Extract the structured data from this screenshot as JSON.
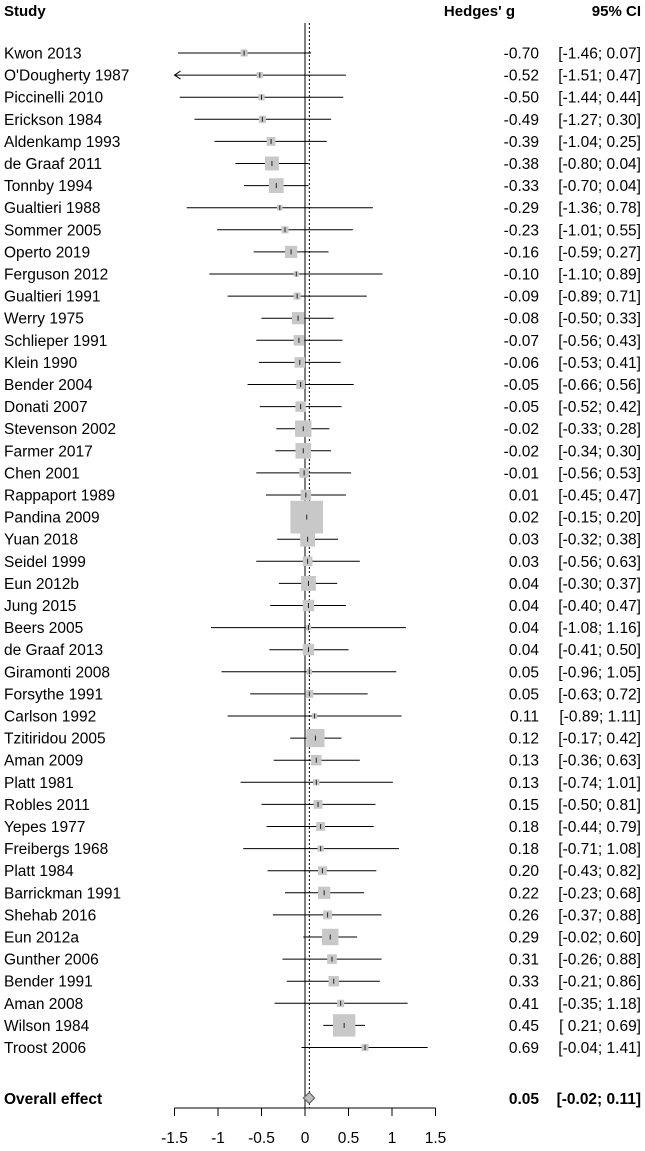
{
  "chart_data": {
    "type": "forest",
    "headers": {
      "study": "Study",
      "effect": "Hedges' g",
      "ci": "95% CI"
    },
    "xlim": [
      -1.5,
      1.5
    ],
    "x_ticks": [
      "-1.5",
      "-1",
      "-0.5",
      "0",
      "0.5",
      "1",
      "1.5"
    ],
    "null_value": 0,
    "overall": {
      "label": "Overall effect",
      "g": 0.05,
      "lower": -0.02,
      "upper": 0.11,
      "g_text": "0.05",
      "ci_text": "[-0.02; 0.11]"
    },
    "studies": [
      {
        "label": "Kwon 2013",
        "g": -0.7,
        "lower": -1.46,
        "upper": 0.07,
        "weight": 0.3,
        "g_text": "-0.70",
        "ci_text": "[-1.46; 0.07]"
      },
      {
        "label": "O'Dougherty 1987",
        "g": -0.52,
        "lower": -1.51,
        "upper": 0.47,
        "weight": 0.25,
        "g_text": "-0.52",
        "ci_text": "[-1.51; 0.47]"
      },
      {
        "label": "Piccinelli 2010",
        "g": -0.5,
        "lower": -1.44,
        "upper": 0.44,
        "weight": 0.25,
        "g_text": "-0.50",
        "ci_text": "[-1.44; 0.44]"
      },
      {
        "label": "Erickson 1984",
        "g": -0.49,
        "lower": -1.27,
        "upper": 0.3,
        "weight": 0.3,
        "g_text": "-0.49",
        "ci_text": "[-1.27; 0.30]"
      },
      {
        "label": "Aldenkamp 1993",
        "g": -0.39,
        "lower": -1.04,
        "upper": 0.25,
        "weight": 0.4,
        "g_text": "-0.39",
        "ci_text": "[-1.04; 0.25]"
      },
      {
        "label": "de Graaf 2011",
        "g": -0.38,
        "lower": -0.8,
        "upper": 0.04,
        "weight": 0.7,
        "g_text": "-0.38",
        "ci_text": "[-0.80; 0.04]"
      },
      {
        "label": "Tonnby 1994",
        "g": -0.33,
        "lower": -0.7,
        "upper": 0.04,
        "weight": 0.75,
        "g_text": "-0.33",
        "ci_text": "[-0.70; 0.04]"
      },
      {
        "label": "Gualtieri 1988",
        "g": -0.29,
        "lower": -1.36,
        "upper": 0.78,
        "weight": 0.2,
        "g_text": "-0.29",
        "ci_text": "[-1.36; 0.78]"
      },
      {
        "label": "Sommer 2005",
        "g": -0.23,
        "lower": -1.01,
        "upper": 0.55,
        "weight": 0.3,
        "g_text": "-0.23",
        "ci_text": "[-1.01; 0.55]"
      },
      {
        "label": "Operto 2019",
        "g": -0.16,
        "lower": -0.59,
        "upper": 0.27,
        "weight": 0.6,
        "g_text": "-0.16",
        "ci_text": "[-0.59; 0.27]"
      },
      {
        "label": "Ferguson 2012",
        "g": -0.1,
        "lower": -1.1,
        "upper": 0.89,
        "weight": 0.2,
        "g_text": "-0.10",
        "ci_text": "[-1.10; 0.89]"
      },
      {
        "label": "Gualtieri 1991",
        "g": -0.09,
        "lower": -0.89,
        "upper": 0.71,
        "weight": 0.3,
        "g_text": "-0.09",
        "ci_text": "[-0.89; 0.71]"
      },
      {
        "label": "Werry 1975",
        "g": -0.08,
        "lower": -0.5,
        "upper": 0.33,
        "weight": 0.6,
        "g_text": "-0.08",
        "ci_text": "[-0.50; 0.33]"
      },
      {
        "label": "Schlieper 1991",
        "g": -0.07,
        "lower": -0.56,
        "upper": 0.43,
        "weight": 0.5,
        "g_text": "-0.07",
        "ci_text": "[-0.56; 0.43]"
      },
      {
        "label": "Klein 1990",
        "g": -0.06,
        "lower": -0.53,
        "upper": 0.41,
        "weight": 0.5,
        "g_text": "-0.06",
        "ci_text": "[-0.53; 0.41]"
      },
      {
        "label": "Bender 2004",
        "g": -0.05,
        "lower": -0.66,
        "upper": 0.56,
        "weight": 0.4,
        "g_text": "-0.05",
        "ci_text": "[-0.66; 0.56]"
      },
      {
        "label": "Donati 2007",
        "g": -0.05,
        "lower": -0.52,
        "upper": 0.42,
        "weight": 0.5,
        "g_text": "-0.05",
        "ci_text": "[-0.52; 0.42]"
      },
      {
        "label": "Stevenson 2002",
        "g": -0.02,
        "lower": -0.33,
        "upper": 0.28,
        "weight": 0.85,
        "g_text": "-0.02",
        "ci_text": "[-0.33; 0.28]"
      },
      {
        "label": "Farmer 2017",
        "g": -0.02,
        "lower": -0.34,
        "upper": 0.3,
        "weight": 0.8,
        "g_text": "-0.02",
        "ci_text": "[-0.34; 0.30]"
      },
      {
        "label": "Chen 2001",
        "g": -0.01,
        "lower": -0.56,
        "upper": 0.53,
        "weight": 0.45,
        "g_text": "-0.01",
        "ci_text": "[-0.56; 0.53]"
      },
      {
        "label": "Rappaport 1989",
        "g": 0.01,
        "lower": -0.45,
        "upper": 0.47,
        "weight": 0.5,
        "g_text": "0.01",
        "ci_text": "[-0.45; 0.47]"
      },
      {
        "label": "Pandina 2009",
        "g": 0.02,
        "lower": -0.15,
        "upper": 0.2,
        "weight": 1.8,
        "g_text": "0.02",
        "ci_text": "[-0.15; 0.20]"
      },
      {
        "label": "Yuan 2018",
        "g": 0.03,
        "lower": -0.32,
        "upper": 0.38,
        "weight": 0.75,
        "g_text": "0.03",
        "ci_text": "[-0.32; 0.38]"
      },
      {
        "label": "Seidel 1999",
        "g": 0.03,
        "lower": -0.56,
        "upper": 0.63,
        "weight": 0.45,
        "g_text": "0.03",
        "ci_text": "[-0.56; 0.63]"
      },
      {
        "label": "Eun 2012b",
        "g": 0.04,
        "lower": -0.3,
        "upper": 0.37,
        "weight": 0.75,
        "g_text": "0.04",
        "ci_text": "[-0.30; 0.37]"
      },
      {
        "label": "Jung 2015",
        "g": 0.04,
        "lower": -0.4,
        "upper": 0.47,
        "weight": 0.55,
        "g_text": "0.04",
        "ci_text": "[-0.40; 0.47]"
      },
      {
        "label": "Beers 2005",
        "g": 0.04,
        "lower": -1.08,
        "upper": 1.16,
        "weight": 0.2,
        "g_text": "0.04",
        "ci_text": "[-1.08; 1.16]"
      },
      {
        "label": "de Graaf 2013",
        "g": 0.04,
        "lower": -0.41,
        "upper": 0.5,
        "weight": 0.55,
        "g_text": "0.04",
        "ci_text": "[-0.41; 0.50]"
      },
      {
        "label": "Giramonti 2008",
        "g": 0.05,
        "lower": -0.96,
        "upper": 1.05,
        "weight": 0.2,
        "g_text": "0.05",
        "ci_text": "[-0.96; 1.05]"
      },
      {
        "label": "Forsythe 1991",
        "g": 0.05,
        "lower": -0.63,
        "upper": 0.72,
        "weight": 0.35,
        "g_text": "0.05",
        "ci_text": "[-0.63; 0.72]"
      },
      {
        "label": "Carlson 1992",
        "g": 0.11,
        "lower": -0.89,
        "upper": 1.11,
        "weight": 0.2,
        "g_text": "0.11",
        "ci_text": "[-0.89; 1.11]"
      },
      {
        "label": "Tzitiridou 2005",
        "g": 0.12,
        "lower": -0.17,
        "upper": 0.42,
        "weight": 0.95,
        "g_text": "0.12",
        "ci_text": "[-0.17; 0.42]"
      },
      {
        "label": "Aman 2009",
        "g": 0.13,
        "lower": -0.36,
        "upper": 0.63,
        "weight": 0.5,
        "g_text": "0.13",
        "ci_text": "[-0.36; 0.63]"
      },
      {
        "label": "Platt 1981",
        "g": 0.13,
        "lower": -0.74,
        "upper": 1.01,
        "weight": 0.25,
        "g_text": "0.13",
        "ci_text": "[-0.74; 1.01]"
      },
      {
        "label": "Robles 2011",
        "g": 0.15,
        "lower": -0.5,
        "upper": 0.81,
        "weight": 0.4,
        "g_text": "0.15",
        "ci_text": "[-0.50; 0.81]"
      },
      {
        "label": "Yepes 1977",
        "g": 0.18,
        "lower": -0.44,
        "upper": 0.79,
        "weight": 0.4,
        "g_text": "0.18",
        "ci_text": "[-0.44; 0.79]"
      },
      {
        "label": "Freibergs 1968",
        "g": 0.18,
        "lower": -0.71,
        "upper": 1.08,
        "weight": 0.25,
        "g_text": "0.18",
        "ci_text": "[-0.71; 1.08]"
      },
      {
        "label": "Platt 1984",
        "g": 0.2,
        "lower": -0.43,
        "upper": 0.82,
        "weight": 0.4,
        "g_text": "0.20",
        "ci_text": "[-0.43; 0.82]"
      },
      {
        "label": "Barrickman 1991",
        "g": 0.22,
        "lower": -0.23,
        "upper": 0.68,
        "weight": 0.6,
        "g_text": "0.22",
        "ci_text": "[-0.23; 0.68]"
      },
      {
        "label": "Shehab 2016",
        "g": 0.26,
        "lower": -0.37,
        "upper": 0.88,
        "weight": 0.4,
        "g_text": "0.26",
        "ci_text": "[-0.37; 0.88]"
      },
      {
        "label": "Eun 2012a",
        "g": 0.29,
        "lower": -0.02,
        "upper": 0.6,
        "weight": 0.85,
        "g_text": "0.29",
        "ci_text": "[-0.02; 0.60]"
      },
      {
        "label": "Gunther 2006",
        "g": 0.31,
        "lower": -0.26,
        "upper": 0.88,
        "weight": 0.45,
        "g_text": "0.31",
        "ci_text": "[-0.26; 0.88]"
      },
      {
        "label": "Bender 1991",
        "g": 0.33,
        "lower": -0.21,
        "upper": 0.86,
        "weight": 0.5,
        "g_text": "0.33",
        "ci_text": "[-0.21; 0.86]"
      },
      {
        "label": "Aman 2008",
        "g": 0.41,
        "lower": -0.35,
        "upper": 1.18,
        "weight": 0.3,
        "g_text": "0.41",
        "ci_text": "[-0.35; 1.18]"
      },
      {
        "label": "Wilson 1984",
        "g": 0.45,
        "lower": 0.21,
        "upper": 0.69,
        "weight": 1.2,
        "g_text": "0.45",
        "ci_text": "[ 0.21; 0.69]"
      },
      {
        "label": "Troost 2006",
        "g": 0.69,
        "lower": -0.04,
        "upper": 1.41,
        "weight": 0.3,
        "g_text": "0.69",
        "ci_text": "[-0.04; 1.41]"
      }
    ]
  },
  "colors": {
    "box_fill": "#c8c8c8",
    "diamond_fill": "#bdbdbd",
    "line": "#000000"
  }
}
